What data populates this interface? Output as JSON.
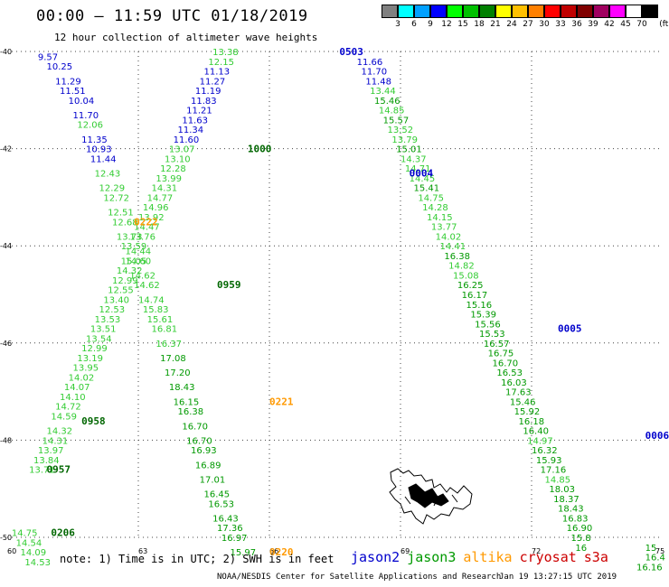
{
  "header": {
    "title": "00:00 – 11:59 UTC 01/18/2019",
    "subtitle": "12 hour collection of altimeter wave heights"
  },
  "legend": {
    "unit_label": "(ft)",
    "bins": [
      {
        "label": "3",
        "color": "#808080"
      },
      {
        "label": "6",
        "color": "#00ffff"
      },
      {
        "label": "9",
        "color": "#00a0ff"
      },
      {
        "label": "12",
        "color": "#0000ff"
      },
      {
        "label": "15",
        "color": "#00ff00"
      },
      {
        "label": "18",
        "color": "#00c000"
      },
      {
        "label": "21",
        "color": "#008000"
      },
      {
        "label": "24",
        "color": "#ffff00"
      },
      {
        "label": "27",
        "color": "#ffc000"
      },
      {
        "label": "30",
        "color": "#ff8000"
      },
      {
        "label": "33",
        "color": "#ff0000"
      },
      {
        "label": "36",
        "color": "#c00000"
      },
      {
        "label": "39",
        "color": "#800000"
      },
      {
        "label": "42",
        "color": "#a00060"
      },
      {
        "label": "45",
        "color": "#ff00ff"
      },
      {
        "label": "70",
        "color": "#ffffff"
      },
      {
        "label": "",
        "color": "#000000"
      }
    ]
  },
  "map": {
    "lon_ticks": [
      "60",
      "63",
      "66",
      "69",
      "72",
      "75"
    ],
    "lat_ticks": [
      "-40",
      "-42",
      "-44",
      "-46",
      "-48",
      "-50"
    ],
    "grid": true,
    "land": "Kerguelen Islands"
  },
  "colors": {
    "jason2": "#0000cc",
    "jason3": "#006600",
    "altika": "#ff9900",
    "cryosat": "#cc0000",
    "s3a": "#cc0000",
    "swh_light": "#33cc33",
    "swh_mid": "#009900",
    "swh_dark_blue": "#0000cc"
  },
  "passes": [
    {
      "name": "track-A-descending",
      "obs": [
        [
          "9.57",
          60.7,
          -40.1,
          "b"
        ],
        [
          "10.25",
          60.9,
          -40.3,
          "b"
        ],
        [
          "11.29",
          61.1,
          -40.6,
          "b"
        ],
        [
          "11.51",
          61.2,
          -40.8,
          "b"
        ],
        [
          "10.04",
          61.4,
          -41.0,
          "b"
        ],
        [
          "11.70",
          61.5,
          -41.3,
          "b"
        ],
        [
          "12.06",
          61.6,
          -41.5,
          "l"
        ],
        [
          "11.35",
          61.7,
          -41.8,
          "b"
        ],
        [
          "10.93",
          61.8,
          -42.0,
          "b"
        ],
        [
          "11.44",
          61.9,
          -42.2,
          "b"
        ],
        [
          "12.43",
          62.0,
          -42.5,
          "l"
        ],
        [
          "12.29",
          62.1,
          -42.8,
          "l"
        ],
        [
          "12.72",
          62.2,
          -43.0,
          "l"
        ],
        [
          "12.51",
          62.3,
          -43.3,
          "l"
        ],
        [
          "12.68",
          62.4,
          -43.5,
          "l"
        ],
        [
          "13.73",
          62.5,
          -43.8,
          "l"
        ],
        [
          "13.59",
          62.6,
          -44.0,
          "l"
        ],
        [
          "14.60",
          62.7,
          -44.3,
          "l"
        ],
        [
          "14.62",
          62.8,
          -44.6,
          "l"
        ],
        [
          "14.62",
          62.9,
          -44.8,
          "l"
        ],
        [
          "14.74",
          63.0,
          -45.1,
          "l"
        ],
        [
          "15.83",
          63.1,
          -45.3,
          "l"
        ],
        [
          "15.61",
          63.2,
          -45.5,
          "l"
        ],
        [
          "16.81",
          63.3,
          -45.7,
          "l"
        ],
        [
          "16.37",
          63.4,
          -46.0,
          "l"
        ],
        [
          "17.08",
          63.5,
          -46.3,
          "m"
        ],
        [
          "17.20",
          63.6,
          -46.6,
          "m"
        ],
        [
          "18.43",
          63.7,
          -46.9,
          "m"
        ],
        [
          "16.15",
          63.8,
          -47.2,
          "m"
        ],
        [
          "16.38",
          63.9,
          -47.4,
          "m"
        ],
        [
          "16.70",
          64.0,
          -47.7,
          "m"
        ],
        [
          "16.70",
          64.1,
          -48.0,
          "m"
        ],
        [
          "16.93",
          64.2,
          -48.2,
          "m"
        ],
        [
          "16.89",
          64.3,
          -48.5,
          "m"
        ],
        [
          "17.01",
          64.4,
          -48.8,
          "m"
        ],
        [
          "16.45",
          64.5,
          -49.1,
          "m"
        ],
        [
          "16.53",
          64.6,
          -49.3,
          "m"
        ],
        [
          "16.43",
          64.7,
          -49.6,
          "m"
        ],
        [
          "17.36",
          64.8,
          -49.8,
          "m"
        ],
        [
          "16.97",
          64.9,
          -50.0,
          "m"
        ],
        [
          "15.97",
          65.1,
          -50.3,
          "m"
        ]
      ],
      "time": {
        "label": "0222",
        "lon": 62.9,
        "lat": -43.5,
        "sat": "altika"
      }
    },
    {
      "name": "track-B-ascending",
      "obs": [
        [
          "13.71",
          60.5,
          -48.6,
          "l"
        ],
        [
          "13.84",
          60.6,
          -48.4,
          "l"
        ],
        [
          "13.97",
          60.7,
          -48.2,
          "l"
        ],
        [
          "14.31",
          60.8,
          -48.0,
          "l"
        ],
        [
          "14.32",
          60.9,
          -47.8,
          "l"
        ],
        [
          "14.59",
          61.0,
          -47.5,
          "l"
        ],
        [
          "14.72",
          61.1,
          -47.3,
          "l"
        ],
        [
          "14.10",
          61.2,
          -47.1,
          "l"
        ],
        [
          "14.07",
          61.3,
          -46.9,
          "l"
        ],
        [
          "14.02",
          61.4,
          -46.7,
          "l"
        ],
        [
          "13.95",
          61.5,
          -46.5,
          "l"
        ],
        [
          "13.19",
          61.6,
          -46.3,
          "l"
        ],
        [
          "12.99",
          61.7,
          -46.1,
          "l"
        ],
        [
          "13.54",
          61.8,
          -45.9,
          "l"
        ],
        [
          "13.51",
          61.9,
          -45.7,
          "l"
        ],
        [
          "13.53",
          62.0,
          -45.5,
          "l"
        ],
        [
          "12.53",
          62.1,
          -45.3,
          "l"
        ],
        [
          "13.40",
          62.2,
          -45.1,
          "l"
        ],
        [
          "12.55",
          62.3,
          -44.9,
          "l"
        ],
        [
          "12.99",
          62.4,
          -44.7,
          "l"
        ],
        [
          "14.32",
          62.5,
          -44.5,
          "l"
        ],
        [
          "15.05",
          62.6,
          -44.3,
          "l"
        ],
        [
          "14.44",
          62.7,
          -44.1,
          "l"
        ],
        [
          "13.76",
          62.8,
          -43.8,
          "l"
        ],
        [
          "14.47",
          62.9,
          -43.6,
          "l"
        ],
        [
          "13.92",
          63.0,
          -43.4,
          "l"
        ],
        [
          "14.96",
          63.1,
          -43.2,
          "l"
        ],
        [
          "14.77",
          63.2,
          -43.0,
          "l"
        ],
        [
          "14.31",
          63.3,
          -42.8,
          "l"
        ],
        [
          "13.99",
          63.4,
          -42.6,
          "l"
        ],
        [
          "12.28",
          63.5,
          -42.4,
          "l"
        ],
        [
          "13.10",
          63.6,
          -42.2,
          "l"
        ],
        [
          "13.07",
          63.7,
          -42.0,
          "l"
        ],
        [
          "11.60",
          63.8,
          -41.8,
          "b"
        ],
        [
          "11.34",
          63.9,
          -41.6,
          "b"
        ],
        [
          "11.63",
          64.0,
          -41.4,
          "b"
        ],
        [
          "11.21",
          64.1,
          -41.2,
          "b"
        ],
        [
          "11.83",
          64.2,
          -41.0,
          "b"
        ],
        [
          "11.19",
          64.3,
          -40.8,
          "b"
        ],
        [
          "11.27",
          64.4,
          -40.6,
          "b"
        ],
        [
          "11.13",
          64.5,
          -40.4,
          "b"
        ],
        [
          "12.15",
          64.6,
          -40.2,
          "l"
        ],
        [
          "13.38",
          64.7,
          -40.0,
          "l"
        ]
      ],
      "time": {
        "label": "0959",
        "lon": 64.8,
        "lat": -44.8,
        "sat": "jason3"
      }
    },
    {
      "name": "track-C-descending",
      "obs": [
        [
          "11.66",
          68.0,
          -40.2,
          "b"
        ],
        [
          "11.70",
          68.1,
          -40.4,
          "b"
        ],
        [
          "11.48",
          68.2,
          -40.6,
          "b"
        ],
        [
          "13.44",
          68.3,
          -40.8,
          "l"
        ],
        [
          "15.46",
          68.4,
          -41.0,
          "m"
        ],
        [
          "14.85",
          68.5,
          -41.2,
          "l"
        ],
        [
          "15.57",
          68.6,
          -41.4,
          "m"
        ],
        [
          "13.52",
          68.7,
          -41.6,
          "l"
        ],
        [
          "13.79",
          68.8,
          -41.8,
          "l"
        ],
        [
          "15.01",
          68.9,
          -42.0,
          "m"
        ],
        [
          "14.37",
          69.0,
          -42.2,
          "l"
        ],
        [
          "14.71",
          69.1,
          -42.4,
          "l"
        ],
        [
          "14.45",
          69.2,
          -42.6,
          "l"
        ],
        [
          "15.41",
          69.3,
          -42.8,
          "m"
        ],
        [
          "14.75",
          69.4,
          -43.0,
          "l"
        ],
        [
          "14.28",
          69.5,
          -43.2,
          "l"
        ],
        [
          "14.15",
          69.6,
          -43.4,
          "l"
        ],
        [
          "13.77",
          69.7,
          -43.6,
          "l"
        ],
        [
          "14.02",
          69.8,
          -43.8,
          "l"
        ],
        [
          "14.41",
          69.9,
          -44.0,
          "l"
        ],
        [
          "16.38",
          70.0,
          -44.2,
          "m"
        ],
        [
          "14.82",
          70.1,
          -44.4,
          "l"
        ],
        [
          "15.08",
          70.2,
          -44.6,
          "l"
        ],
        [
          "16.25",
          70.3,
          -44.8,
          "m"
        ],
        [
          "16.17",
          70.4,
          -45.0,
          "m"
        ],
        [
          "15.16",
          70.5,
          -45.2,
          "m"
        ],
        [
          "15.39",
          70.6,
          -45.4,
          "m"
        ],
        [
          "15.56",
          70.7,
          -45.6,
          "m"
        ],
        [
          "15.53",
          70.8,
          -45.8,
          "m"
        ],
        [
          "16.57",
          70.9,
          -46.0,
          "m"
        ],
        [
          "16.75",
          71.0,
          -46.2,
          "m"
        ],
        [
          "16.70",
          71.1,
          -46.4,
          "m"
        ],
        [
          "16.53",
          71.2,
          -46.6,
          "m"
        ],
        [
          "16.03",
          71.3,
          -46.8,
          "m"
        ],
        [
          "17.63",
          71.4,
          -47.0,
          "m"
        ],
        [
          "15.46",
          71.5,
          -47.2,
          "m"
        ],
        [
          "15.92",
          71.6,
          -47.4,
          "m"
        ],
        [
          "16.18",
          71.7,
          -47.6,
          "m"
        ],
        [
          "16.40",
          71.8,
          -47.8,
          "m"
        ],
        [
          "14.97",
          71.9,
          -48.0,
          "l"
        ],
        [
          "16.32",
          72.0,
          -48.2,
          "m"
        ],
        [
          "15.93",
          72.1,
          -48.4,
          "m"
        ],
        [
          "17.16",
          72.2,
          -48.6,
          "m"
        ],
        [
          "14.85",
          72.3,
          -48.8,
          "l"
        ],
        [
          "18.03",
          72.4,
          -49.0,
          "m"
        ],
        [
          "18.37",
          72.5,
          -49.2,
          "m"
        ],
        [
          "18.43",
          72.6,
          -49.4,
          "m"
        ],
        [
          "16.83",
          72.7,
          -49.6,
          "m"
        ],
        [
          "16.90",
          72.8,
          -49.8,
          "m"
        ],
        [
          "15.8",
          72.9,
          -50.0,
          "m"
        ],
        [
          "16",
          73.0,
          -50.2,
          "m"
        ]
      ],
      "time": {
        "label": "0004",
        "lon": 69.2,
        "lat": -42.5,
        "sat": "jason2"
      }
    },
    {
      "name": "track-D",
      "obs": [
        [
          "14.75",
          60.1,
          -49.9,
          "l"
        ],
        [
          "14.54",
          60.2,
          -50.1,
          "l"
        ],
        [
          "14.09",
          60.3,
          -50.3,
          "l"
        ],
        [
          "14.53",
          60.4,
          -50.5,
          "l"
        ]
      ],
      "time": {
        "label": "0206",
        "lon": 61.0,
        "lat": -49.9,
        "sat": "jason3"
      }
    },
    {
      "name": "track-E",
      "obs": [
        [
          "15",
          74.6,
          -50.2,
          "m"
        ],
        [
          "16.4",
          74.6,
          -50.4,
          "m"
        ],
        [
          "16.16",
          74.4,
          -50.6,
          "m"
        ]
      ]
    }
  ],
  "time_labels": [
    {
      "label": "0503",
      "lon": 67.6,
      "lat": -40.0,
      "sat": "jason2"
    },
    {
      "label": "1000",
      "lon": 65.5,
      "lat": -42.0,
      "sat": "jason3"
    },
    {
      "label": "0005",
      "lon": 72.6,
      "lat": -45.7,
      "sat": "jason2"
    },
    {
      "label": "0006",
      "lon": 74.6,
      "lat": -47.9,
      "sat": "jason2"
    },
    {
      "label": "0221",
      "lon": 66.0,
      "lat": -47.2,
      "sat": "altika"
    },
    {
      "label": "0958",
      "lon": 61.7,
      "lat": -47.6,
      "sat": "jason3"
    },
    {
      "label": "0957",
      "lon": 60.9,
      "lat": -48.6,
      "sat": "jason3"
    },
    {
      "label": "0220",
      "lon": 66.0,
      "lat": -50.3,
      "sat": "altika"
    }
  ],
  "footer": {
    "note": "note: 1) Time is in UTC; 2) SWH is in feet",
    "satellites": [
      {
        "name": "jason2",
        "color": "#0000cc"
      },
      {
        "name": "jason3",
        "color": "#009900"
      },
      {
        "name": "altika",
        "color": "#ff9900"
      },
      {
        "name": "cryosat",
        "color": "#cc0000"
      },
      {
        "name": "s3a",
        "color": "#cc0000"
      }
    ],
    "credit": "NOAA/NESDIS Center for Satellite Applications and Research",
    "timestamp": "Jan 19 13:27:15 UTC 2019"
  }
}
